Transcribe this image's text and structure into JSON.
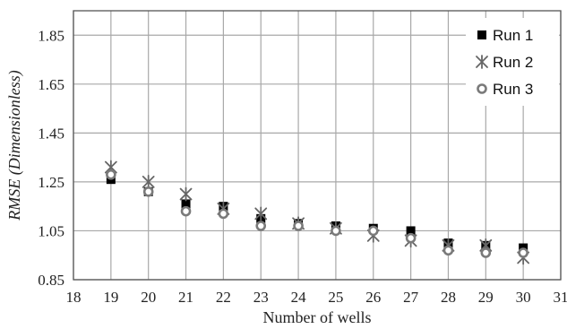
{
  "chart_data": {
    "type": "scatter",
    "xlabel": "Number of wells",
    "ylabel": "RMSE (Dimensionless)",
    "xlim": [
      18,
      31
    ],
    "ylim": [
      0.85,
      1.95
    ],
    "x_ticks": [
      18,
      19,
      20,
      21,
      22,
      23,
      24,
      25,
      26,
      27,
      28,
      29,
      30,
      31
    ],
    "y_ticks": [
      "0.85",
      "1.05",
      "1.25",
      "1.45",
      "1.65",
      "1.85"
    ],
    "grid": true,
    "legend_position": "top-right",
    "series": [
      {
        "name": "Run 1",
        "marker": "square",
        "color": "#000000",
        "x": [
          19,
          20,
          21,
          22,
          23,
          24,
          25,
          26,
          27,
          28,
          29,
          30
        ],
        "y": [
          1.26,
          1.21,
          1.16,
          1.15,
          1.1,
          1.08,
          1.07,
          1.06,
          1.05,
          1.0,
          0.99,
          0.98
        ]
      },
      {
        "name": "Run 2",
        "marker": "asterisk",
        "color": "#666666",
        "x": [
          19,
          20,
          21,
          22,
          23,
          24,
          25,
          26,
          27,
          28,
          29,
          30
        ],
        "y": [
          1.31,
          1.25,
          1.2,
          1.14,
          1.12,
          1.08,
          1.06,
          1.03,
          1.01,
          0.99,
          0.99,
          0.94
        ]
      },
      {
        "name": "Run 3",
        "marker": "circle",
        "color": "#7a7a7a",
        "x": [
          19,
          20,
          21,
          22,
          23,
          24,
          25,
          26,
          27,
          28,
          29,
          30
        ],
        "y": [
          1.28,
          1.21,
          1.13,
          1.12,
          1.07,
          1.07,
          1.05,
          1.05,
          1.02,
          0.97,
          0.96,
          0.96
        ]
      }
    ]
  }
}
